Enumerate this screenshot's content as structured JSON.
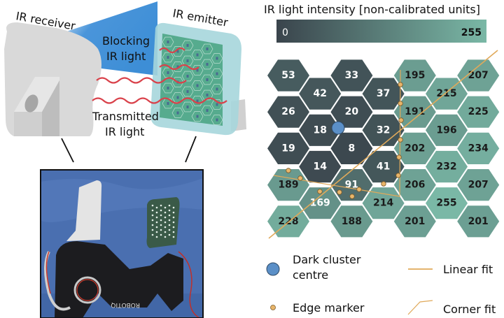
{
  "illustration": {
    "receiver_label": "IR receiver",
    "emitter_label": "IR emitter",
    "blocking_label": [
      "Blocking",
      "IR light"
    ],
    "transmitted_label": [
      "Transmitted",
      "IR light"
    ],
    "photo_logo_text": "ROBOTIQ"
  },
  "colorbar": {
    "title": "IR light intensity [non-calibrated units]",
    "min_label": "0",
    "max_label": "255",
    "min_value": 0,
    "max_value": 255,
    "low_color": "#3a444c",
    "high_color": "#7ab8a6"
  },
  "chart_data": {
    "type": "heatmap",
    "layout": "hexagonal",
    "columns": [
      [
        53,
        26,
        19,
        189,
        228
      ],
      [
        42,
        18,
        14,
        169
      ],
      [
        33,
        20,
        8,
        91,
        188
      ],
      [
        37,
        32,
        41,
        214
      ],
      [
        195,
        191,
        202,
        206,
        201
      ],
      [
        215,
        196,
        232,
        255
      ],
      [
        207,
        225,
        234,
        207,
        201
      ]
    ],
    "value_range": [
      0,
      255
    ]
  },
  "overlay_colors": {
    "fit_line": "#e0a95a",
    "marker": "#e8b56a",
    "cluster_centre": "#5b8fc7"
  },
  "legend": {
    "cluster_centre": [
      "Dark cluster",
      "centre"
    ],
    "edge_marker": "Edge marker",
    "linear_fit": "Linear fit",
    "corner_fit": "Corner fit"
  }
}
